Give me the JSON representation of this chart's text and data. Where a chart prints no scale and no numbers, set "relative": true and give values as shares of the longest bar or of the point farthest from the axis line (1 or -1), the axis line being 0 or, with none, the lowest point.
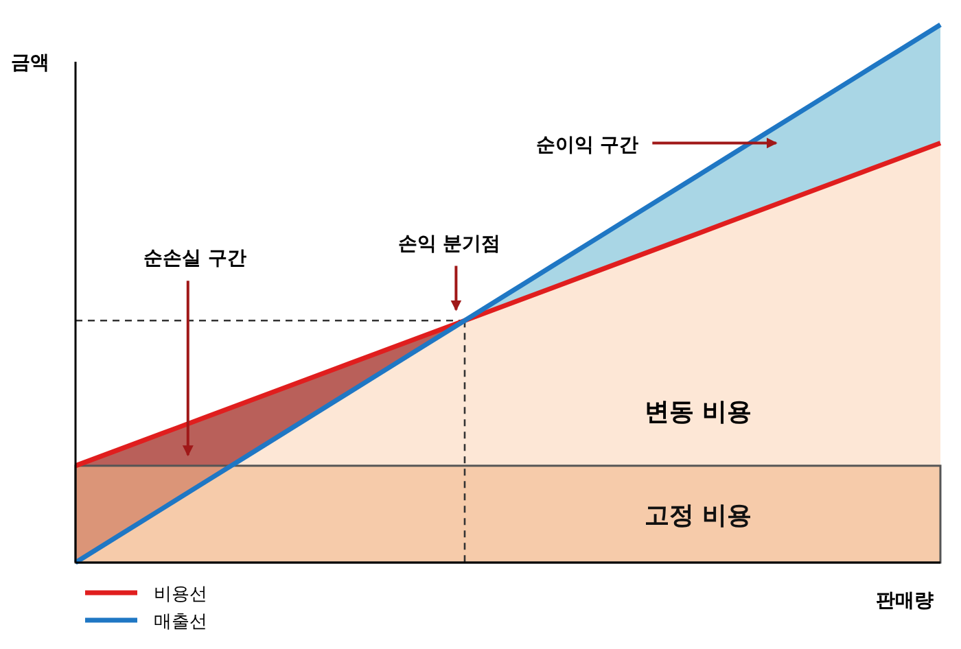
{
  "chart_data": {
    "type": "line",
    "relative": true,
    "ylabel": "금액",
    "xlabel": "판매량",
    "legend": "bottom left",
    "categories": [
      null,
      null,
      null,
      null,
      null,
      null,
      null,
      null,
      null,
      null,
      null,
      null,
      null,
      null,
      null,
      null,
      null,
      null,
      null,
      null,
      null
    ],
    "bands": [
      {
        "axis": "y",
        "from": 0,
        "to": 0.18,
        "label": "고정 비용",
        "color": "#f2b98c"
      }
    ],
    "series": [
      {
        "type": "area",
        "color": "#a9d6e5",
        "values": [
          null,
          null,
          null,
          null,
          null,
          null,
          null,
          null,
          null,
          0.45,
          0.5,
          0.55,
          0.6,
          0.65,
          0.7,
          0.75,
          0.8,
          0.85,
          0.9,
          0.95,
          1
        ]
      },
      {
        "type": "area",
        "color": "#b9605a",
        "values": [
          0.18,
          0.21,
          0.24,
          0.27,
          0.3,
          0.33,
          0.36,
          0.39,
          0.42,
          0.45,
          null,
          null,
          null,
          null,
          null,
          null,
          null,
          null,
          null,
          null,
          null
        ]
      },
      {
        "type": "area",
        "color": "#fde7d6",
        "values": [
          0,
          0.05,
          0.1,
          0.15,
          0.2,
          0.25,
          0.3,
          0.35,
          0.4,
          0.45,
          0.48,
          0.51,
          0.54,
          0.57,
          0.6,
          0.63,
          0.66,
          0.69,
          0.72,
          0.75,
          0.78
        ]
      },
      {
        "color": "#333333",
        "line_style": "dashed",
        "values": [
          0.45,
          0.45,
          0.45,
          0.45,
          0.45,
          0.45,
          0.45,
          0.45,
          0.45,
          0.45,
          null,
          null,
          null,
          null,
          null,
          null,
          null,
          null,
          null,
          null,
          null
        ]
      },
      {
        "name": "비용선",
        "color": "#e01e1e",
        "values": [
          0.18,
          0.21,
          0.24,
          0.27,
          0.3,
          0.33,
          0.36,
          0.39,
          0.42,
          0.45,
          0.48,
          0.51,
          0.54,
          0.57,
          0.6,
          0.63,
          0.66,
          0.69,
          0.72,
          0.75,
          0.78
        ]
      },
      {
        "name": "매출선",
        "color": "#1f77c4",
        "values": [
          0,
          0.05,
          0.1,
          0.15,
          0.2,
          0.25,
          0.3,
          0.35,
          0.4,
          0.45,
          0.5,
          0.55,
          0.6,
          0.65,
          0.7,
          0.75,
          0.8,
          0.85,
          0.9,
          0.95,
          1
        ]
      }
    ],
    "annotations": [
      "순이익 구간",
      "순손실 구간",
      "손익 분기점",
      "변동 비용"
    ]
  }
}
